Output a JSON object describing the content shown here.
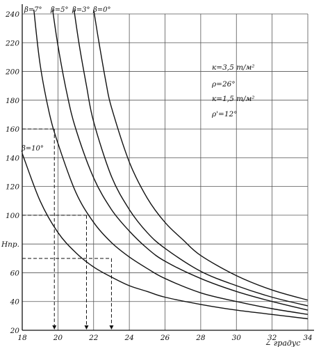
{
  "chart_data": {
    "type": "line",
    "title": "",
    "xlabel": "∠ градус",
    "ylabel": "",
    "xlim": [
      18,
      34
    ],
    "ylim": [
      20,
      240
    ],
    "x_ticks": [
      18,
      20,
      22,
      24,
      26,
      28,
      30,
      32,
      34
    ],
    "y_ticks": [
      20,
      40,
      60,
      80,
      100,
      120,
      140,
      160,
      180,
      200,
      220,
      240
    ],
    "y_tick_labels": [
      "20",
      "40",
      "60",
      "Нпр.",
      "100",
      "120",
      "140",
      "160",
      "180",
      "200",
      "220",
      "240"
    ],
    "grid": true,
    "series": [
      {
        "name": "β=10°",
        "x": [
          18,
          19,
          20,
          21,
          22,
          23,
          24,
          25,
          26,
          28,
          30,
          32,
          34
        ],
        "y": [
          143,
          110,
          88,
          74,
          64,
          57,
          51,
          47,
          43,
          38,
          34,
          31,
          28
        ]
      },
      {
        "name": "β=7°",
        "x": [
          18.65,
          19,
          19.5,
          20,
          21,
          22,
          23,
          24,
          25,
          26,
          28,
          30,
          32,
          34
        ],
        "y": [
          243,
          205,
          172,
          150,
          116,
          95,
          81,
          71,
          63,
          56,
          46,
          40,
          35,
          31
        ]
      },
      {
        "name": "β=5°",
        "x": [
          19.7,
          20,
          20.5,
          21,
          22,
          23,
          24,
          25,
          26,
          28,
          30,
          32,
          34
        ],
        "y": [
          243,
          218,
          185,
          160,
          126,
          104,
          89,
          77,
          68,
          56,
          47,
          40,
          34
        ]
      },
      {
        "name": "β=3°",
        "x": [
          20.9,
          21.2,
          21.6,
          22,
          23,
          24,
          25,
          26,
          28,
          30,
          32,
          34
        ],
        "y": [
          243,
          218,
          190,
          165,
          127,
          104,
          88,
          77,
          61,
          51,
          43,
          37
        ]
      },
      {
        "name": "β=0°",
        "x": [
          22,
          22.3,
          22.7,
          23,
          24,
          25,
          26,
          27,
          28,
          30,
          32,
          34
        ],
        "y": [
          243,
          220,
          192,
          175,
          137,
          112,
          95,
          83,
          72,
          58,
          48,
          41
        ]
      }
    ],
    "annotations": [
      "к=3,5 т/м²",
      "ρ=26°",
      "к=1,5 т/м²",
      "ρ'=12°"
    ],
    "guides": [
      {
        "x": 19.8,
        "y": 160
      },
      {
        "x": 21.6,
        "y": 100
      },
      {
        "x": 23.0,
        "y": 70
      }
    ],
    "legend": "curve labels at top of each curve"
  }
}
